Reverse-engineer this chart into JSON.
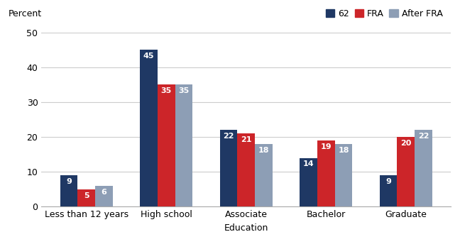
{
  "category_labels": [
    "Less than 12 years",
    "High school",
    "Associate",
    "Bachelor",
    "Graduate"
  ],
  "series": {
    "62": [
      9,
      45,
      22,
      14,
      9
    ],
    "FRA": [
      5,
      35,
      21,
      19,
      20
    ],
    "After FRA": [
      6,
      35,
      18,
      18,
      22
    ]
  },
  "colors": {
    "62": "#1f3864",
    "FRA": "#cc2529",
    "After FRA": "#8d9eb5"
  },
  "legend_labels": [
    "62",
    "FRA",
    "After FRA"
  ],
  "xlabel": "Education",
  "ylabel_topleft": "Percent",
  "ylim": [
    0,
    50
  ],
  "yticks": [
    0,
    10,
    20,
    30,
    40,
    50
  ],
  "bar_width": 0.22,
  "label_fontsize": 8,
  "axis_fontsize": 9,
  "legend_fontsize": 9,
  "background_color": "#ffffff",
  "grid_color": "#cccccc"
}
